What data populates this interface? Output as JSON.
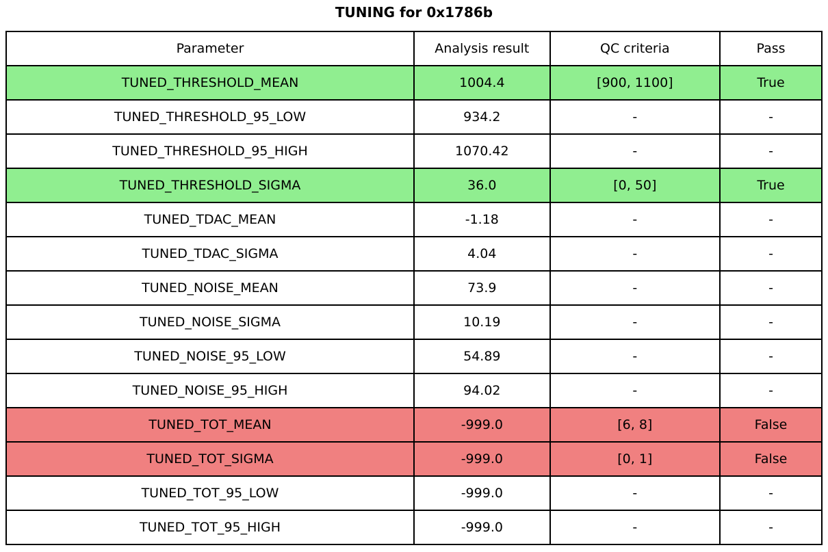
{
  "title": "TUNING for 0x1786b",
  "colors": {
    "pass": "#90EE90",
    "fail": "#F08080",
    "none": "#FFFFFF",
    "border": "#000000",
    "text": "#000000"
  },
  "table": {
    "headers": [
      "Parameter",
      "Analysis result",
      "QC criteria",
      "Pass"
    ],
    "rows": [
      {
        "parameter": "TUNED_THRESHOLD_MEAN",
        "result": "1004.4",
        "qc": "[900, 1100]",
        "pass": "True",
        "status": "pass"
      },
      {
        "parameter": "TUNED_THRESHOLD_95_LOW",
        "result": "934.2",
        "qc": "-",
        "pass": "-",
        "status": "none"
      },
      {
        "parameter": "TUNED_THRESHOLD_95_HIGH",
        "result": "1070.42",
        "qc": "-",
        "pass": "-",
        "status": "none"
      },
      {
        "parameter": "TUNED_THRESHOLD_SIGMA",
        "result": "36.0",
        "qc": "[0, 50]",
        "pass": "True",
        "status": "pass"
      },
      {
        "parameter": "TUNED_TDAC_MEAN",
        "result": "-1.18",
        "qc": "-",
        "pass": "-",
        "status": "none"
      },
      {
        "parameter": "TUNED_TDAC_SIGMA",
        "result": "4.04",
        "qc": "-",
        "pass": "-",
        "status": "none"
      },
      {
        "parameter": "TUNED_NOISE_MEAN",
        "result": "73.9",
        "qc": "-",
        "pass": "-",
        "status": "none"
      },
      {
        "parameter": "TUNED_NOISE_SIGMA",
        "result": "10.19",
        "qc": "-",
        "pass": "-",
        "status": "none"
      },
      {
        "parameter": "TUNED_NOISE_95_LOW",
        "result": "54.89",
        "qc": "-",
        "pass": "-",
        "status": "none"
      },
      {
        "parameter": "TUNED_NOISE_95_HIGH",
        "result": "94.02",
        "qc": "-",
        "pass": "-",
        "status": "none"
      },
      {
        "parameter": "TUNED_TOT_MEAN",
        "result": "-999.0",
        "qc": "[6, 8]",
        "pass": "False",
        "status": "fail"
      },
      {
        "parameter": "TUNED_TOT_SIGMA",
        "result": "-999.0",
        "qc": "[0, 1]",
        "pass": "False",
        "status": "fail"
      },
      {
        "parameter": "TUNED_TOT_95_LOW",
        "result": "-999.0",
        "qc": "-",
        "pass": "-",
        "status": "none"
      },
      {
        "parameter": "TUNED_TOT_95_HIGH",
        "result": "-999.0",
        "qc": "-",
        "pass": "-",
        "status": "none"
      }
    ]
  },
  "chart_data": {
    "type": "table",
    "title": "TUNING for 0x1786b",
    "columns": [
      "Parameter",
      "Analysis result",
      "QC criteria",
      "Pass"
    ],
    "rows": [
      [
        "TUNED_THRESHOLD_MEAN",
        1004.4,
        "[900, 1100]",
        true
      ],
      [
        "TUNED_THRESHOLD_95_LOW",
        934.2,
        null,
        null
      ],
      [
        "TUNED_THRESHOLD_95_HIGH",
        1070.42,
        null,
        null
      ],
      [
        "TUNED_THRESHOLD_SIGMA",
        36.0,
        "[0, 50]",
        true
      ],
      [
        "TUNED_TDAC_MEAN",
        -1.18,
        null,
        null
      ],
      [
        "TUNED_TDAC_SIGMA",
        4.04,
        null,
        null
      ],
      [
        "TUNED_NOISE_MEAN",
        73.9,
        null,
        null
      ],
      [
        "TUNED_NOISE_SIGMA",
        10.19,
        null,
        null
      ],
      [
        "TUNED_NOISE_95_LOW",
        54.89,
        null,
        null
      ],
      [
        "TUNED_NOISE_95_HIGH",
        94.02,
        null,
        null
      ],
      [
        "TUNED_TOT_MEAN",
        -999.0,
        "[6, 8]",
        false
      ],
      [
        "TUNED_TOT_SIGMA",
        -999.0,
        "[0, 1]",
        false
      ],
      [
        "TUNED_TOT_95_LOW",
        -999.0,
        null,
        null
      ],
      [
        "TUNED_TOT_95_HIGH",
        -999.0,
        null,
        null
      ]
    ],
    "row_colors": [
      "pass",
      "none",
      "none",
      "pass",
      "none",
      "none",
      "none",
      "none",
      "none",
      "none",
      "fail",
      "fail",
      "none",
      "none"
    ],
    "legend_position": "none",
    "grid": true
  }
}
